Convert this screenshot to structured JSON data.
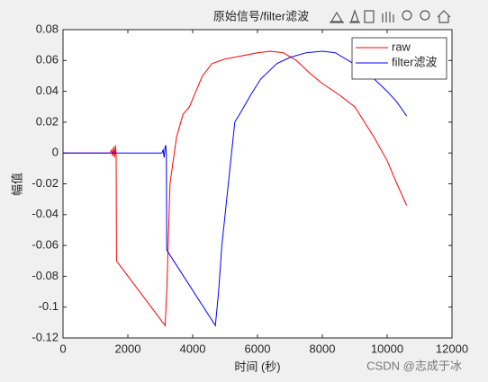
{
  "chart_data": {
    "type": "line",
    "title": "原始信号/filter滤波",
    "xlabel": "时间 (秒)",
    "ylabel": "幅值",
    "watermark": "CSDN @志成于冰",
    "xlim": [
      0,
      12000
    ],
    "xticks": [
      0,
      2000,
      4000,
      6000,
      8000,
      10000,
      12000
    ],
    "ylim": [
      -0.12,
      0.08
    ],
    "yticks": [
      -0.12,
      -0.1,
      -0.08,
      -0.06,
      -0.04,
      -0.02,
      0,
      0.02,
      0.04,
      0.06,
      0.08
    ],
    "grid": false,
    "legend": "top-right",
    "series": [
      {
        "name": "raw",
        "color": "#ff0000",
        "x": [
          0,
          1450,
          1500,
          1530,
          1560,
          1590,
          1620,
          1640,
          1650,
          3150,
          3200,
          3300,
          3500,
          3700,
          3900,
          4100,
          4300,
          4600,
          5000,
          5500,
          6000,
          6400,
          6800,
          7200,
          7600,
          8000,
          8500,
          9000,
          9300,
          9600,
          10000,
          10300,
          10600
        ],
        "values": [
          0,
          0,
          0.002,
          -0.002,
          0.004,
          -0.003,
          0.005,
          -0.002,
          -0.07,
          -0.112,
          -0.09,
          -0.02,
          0.01,
          0.025,
          0.03,
          0.04,
          0.05,
          0.058,
          0.061,
          0.063,
          0.065,
          0.066,
          0.065,
          0.06,
          0.052,
          0.045,
          0.038,
          0.03,
          0.02,
          0.01,
          -0.005,
          -0.02,
          -0.034
        ]
      },
      {
        "name": "filter滤波",
        "color": "#0000ff",
        "x": [
          0,
          3050,
          3090,
          3120,
          3150,
          3170,
          3190,
          3200,
          4700,
          4800,
          4900,
          5100,
          5300,
          5500,
          5800,
          6100,
          6600,
          7000,
          7500,
          8000,
          8400,
          8800,
          9200,
          9600,
          10000,
          10300,
          10600
        ],
        "values": [
          0,
          0,
          0.002,
          -0.003,
          0.004,
          0.005,
          -0.002,
          -0.063,
          -0.112,
          -0.09,
          -0.06,
          -0.02,
          0.02,
          0.027,
          0.038,
          0.048,
          0.058,
          0.062,
          0.065,
          0.066,
          0.065,
          0.06,
          0.055,
          0.048,
          0.04,
          0.033,
          0.024
        ]
      }
    ]
  }
}
